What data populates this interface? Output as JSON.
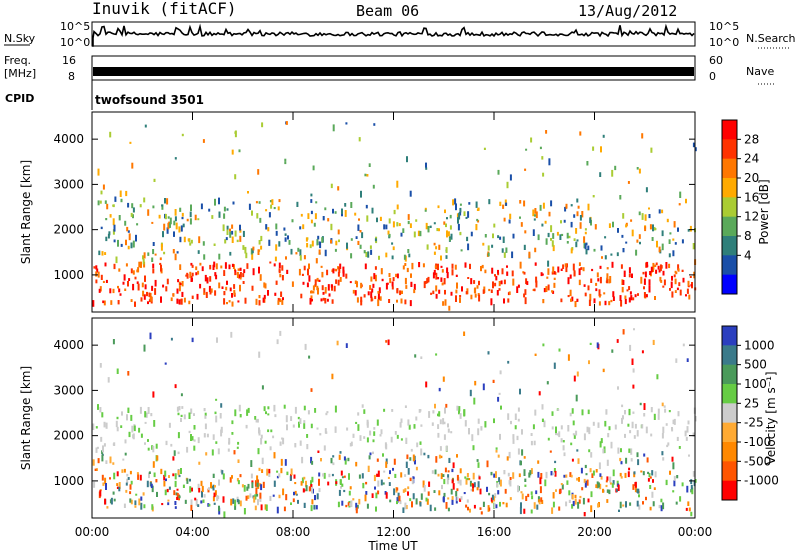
{
  "header": {
    "station": "Inuvik (fitACF)",
    "beam": "Beam 06",
    "date": "13/Aug/2012"
  },
  "strip_labels": {
    "nsky": "N.Sky",
    "nsky_ticks": [
      "10^5",
      "10^0"
    ],
    "freq_line1": "Freq.",
    "freq_line2": "[MHz]",
    "freq_ticks": [
      "16",
      "8"
    ],
    "nsearch": "N.Search",
    "nsearch_ticks": [
      "10^5",
      "10^0"
    ],
    "nave": "Nave",
    "nave_ticks": [
      "60",
      "0"
    ],
    "cpid": "CPID",
    "cpid_value": "twofsound 3501"
  },
  "chart_data": [
    {
      "type": "heatmap",
      "panel": "power",
      "ylabel": "Slant Range [km]",
      "xlabel": "",
      "y_ticks": [
        1000,
        2000,
        3000,
        4000
      ],
      "ylim": [
        180,
        4600
      ],
      "x_ticks": [
        "00:00",
        "04:00",
        "08:00",
        "12:00",
        "16:00",
        "20:00",
        "00:00"
      ],
      "xlim_hours": [
        0,
        24
      ],
      "colorbar": {
        "label": "Power [dB]",
        "ticks": [
          "28",
          "24",
          "20",
          "16",
          "12",
          "8",
          "4"
        ],
        "colors": [
          "#ff0000",
          "#ff3300",
          "#ff7700",
          "#ffaa00",
          "#aacc33",
          "#5aa95a",
          "#2f7f7a",
          "#1a4fa8",
          "#0000ff"
        ]
      }
    },
    {
      "type": "heatmap",
      "panel": "velocity",
      "ylabel": "Slant Range [km]",
      "xlabel": "Time UT",
      "y_ticks": [
        1000,
        2000,
        3000,
        4000
      ],
      "ylim": [
        180,
        4600
      ],
      "x_ticks": [
        "00:00",
        "04:00",
        "08:00",
        "12:00",
        "16:00",
        "20:00",
        "00:00"
      ],
      "xlim_hours": [
        0,
        24
      ],
      "colorbar": {
        "label": "Velocity [m s⁻¹]",
        "ticks": [
          "1000",
          "500",
          "100",
          "25",
          "-25",
          "-100",
          "-500",
          "-1000"
        ],
        "colors": [
          "#2b3fbf",
          "#3a7a8a",
          "#4a9a5a",
          "#66cc44",
          "#cccccc",
          "#ffaa33",
          "#ff8800",
          "#ff5500",
          "#ff0000"
        ]
      }
    }
  ]
}
